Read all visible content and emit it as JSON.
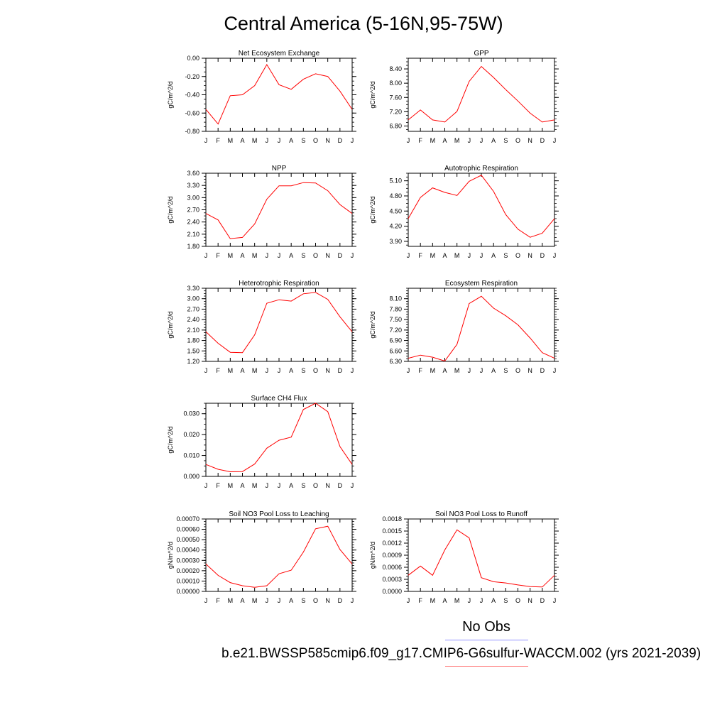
{
  "title": "Central America (5-16N,95-75W)",
  "legend": {
    "obs_label": "No Obs",
    "case_label": "b.e21.BWSSP585cmip6.f09_g17.CMIP6-G6sulfur-WACCM.002 (yrs 2021-2039)",
    "obs_color": "#9090ff",
    "case_color": "#ff0000"
  },
  "chart_data": [
    {
      "type": "line",
      "title": "Net Ecosystem Exchange",
      "ylabel": "gC/m^2/d",
      "x": [
        "J",
        "F",
        "M",
        "A",
        "M",
        "J",
        "J",
        "A",
        "S",
        "O",
        "N",
        "D",
        "J"
      ],
      "ylim": [
        -0.8,
        0.0
      ],
      "yticks": [
        "0.00",
        "-0.20",
        "-0.40",
        "-0.60",
        "-0.80"
      ],
      "ytick_values": [
        0.0,
        -0.2,
        -0.4,
        -0.6,
        -0.8
      ],
      "series": [
        {
          "values": [
            -0.56,
            -0.72,
            -0.41,
            -0.4,
            -0.3,
            -0.07,
            -0.29,
            -0.34,
            -0.23,
            -0.17,
            -0.2,
            -0.36,
            -0.56
          ]
        }
      ]
    },
    {
      "type": "line",
      "title": "GPP",
      "ylabel": "gC/m^2/d",
      "x": [
        "J",
        "F",
        "M",
        "A",
        "M",
        "J",
        "J",
        "A",
        "S",
        "O",
        "N",
        "D",
        "J"
      ],
      "ylim": [
        6.65,
        8.7
      ],
      "yticks": [
        "8.40",
        "8.00",
        "7.60",
        "7.20",
        "6.80"
      ],
      "ytick_values": [
        8.4,
        8.0,
        7.6,
        7.2,
        6.8
      ],
      "series": [
        {
          "values": [
            6.97,
            7.25,
            6.97,
            6.91,
            7.21,
            8.05,
            8.47,
            8.16,
            7.82,
            7.5,
            7.16,
            6.91,
            6.97
          ]
        }
      ]
    },
    {
      "type": "line",
      "title": "NPP",
      "ylabel": "gC/m^2/d",
      "x": [
        "J",
        "F",
        "M",
        "A",
        "M",
        "J",
        "J",
        "A",
        "S",
        "O",
        "N",
        "D",
        "J"
      ],
      "ylim": [
        1.8,
        3.6
      ],
      "yticks": [
        "3.60",
        "3.30",
        "3.00",
        "2.70",
        "2.40",
        "2.10",
        "1.80"
      ],
      "ytick_values": [
        3.6,
        3.3,
        3.0,
        2.7,
        2.4,
        2.1,
        1.8
      ],
      "series": [
        {
          "values": [
            2.61,
            2.45,
            1.99,
            2.02,
            2.35,
            2.96,
            3.29,
            3.29,
            3.37,
            3.36,
            3.17,
            2.83,
            2.61
          ]
        }
      ]
    },
    {
      "type": "line",
      "title": "Autotrophic Respiration",
      "ylabel": "gC/m^2/d",
      "x": [
        "J",
        "F",
        "M",
        "A",
        "M",
        "J",
        "J",
        "A",
        "S",
        "O",
        "N",
        "D",
        "J"
      ],
      "ylim": [
        3.8,
        5.25
      ],
      "yticks": [
        "5.10",
        "4.80",
        "4.50",
        "4.20",
        "3.90"
      ],
      "ytick_values": [
        5.1,
        4.8,
        4.5,
        4.2,
        3.9
      ],
      "series": [
        {
          "values": [
            4.35,
            4.77,
            4.96,
            4.87,
            4.81,
            5.09,
            5.21,
            4.89,
            4.43,
            4.14,
            3.98,
            4.06,
            4.35
          ]
        }
      ]
    },
    {
      "type": "line",
      "title": "Heterotrophic Respiration",
      "ylabel": "gC/m^2/d",
      "x": [
        "J",
        "F",
        "M",
        "A",
        "M",
        "J",
        "J",
        "A",
        "S",
        "O",
        "N",
        "D",
        "J"
      ],
      "ylim": [
        1.2,
        3.3
      ],
      "yticks": [
        "3.30",
        "3.00",
        "2.70",
        "2.40",
        "2.10",
        "1.80",
        "1.50",
        "1.20"
      ],
      "ytick_values": [
        3.3,
        3.0,
        2.7,
        2.4,
        2.1,
        1.8,
        1.5,
        1.2
      ],
      "series": [
        {
          "values": [
            2.05,
            1.72,
            1.46,
            1.45,
            1.96,
            2.87,
            2.97,
            2.93,
            3.14,
            3.18,
            2.98,
            2.48,
            2.05
          ]
        }
      ]
    },
    {
      "type": "line",
      "title": "Ecosystem Respiration",
      "ylabel": "gC/m^2/d",
      "x": [
        "J",
        "F",
        "M",
        "A",
        "M",
        "J",
        "J",
        "A",
        "S",
        "O",
        "N",
        "D",
        "J"
      ],
      "ylim": [
        6.3,
        8.4
      ],
      "yticks": [
        "8.10",
        "7.80",
        "7.50",
        "7.20",
        "6.90",
        "6.60",
        "6.30"
      ],
      "ytick_values": [
        8.1,
        7.8,
        7.5,
        7.2,
        6.9,
        6.6,
        6.3
      ],
      "series": [
        {
          "values": [
            6.39,
            6.48,
            6.42,
            6.31,
            6.79,
            7.96,
            8.17,
            7.83,
            7.61,
            7.35,
            6.97,
            6.55,
            6.39
          ]
        }
      ]
    },
    {
      "type": "line",
      "title": "Surface CH4 Flux",
      "ylabel": "gC/m^2/d",
      "x": [
        "J",
        "F",
        "M",
        "A",
        "M",
        "J",
        "J",
        "A",
        "S",
        "O",
        "N",
        "D",
        "J"
      ],
      "ylim": [
        0.0,
        0.035
      ],
      "yticks": [
        "0.030",
        "0.020",
        "0.010",
        "0.000"
      ],
      "ytick_values": [
        0.03,
        0.02,
        0.01,
        0.0
      ],
      "series": [
        {
          "values": [
            0.0057,
            0.0034,
            0.0022,
            0.0023,
            0.0059,
            0.0135,
            0.0173,
            0.0188,
            0.032,
            0.035,
            0.031,
            0.0143,
            0.0057
          ]
        }
      ]
    },
    {
      "type": "line",
      "title": "Soil NO3 Pool Loss to Leaching",
      "ylabel": "gN/m^2/d",
      "x": [
        "J",
        "F",
        "M",
        "A",
        "M",
        "J",
        "J",
        "A",
        "S",
        "O",
        "N",
        "D",
        "J"
      ],
      "ylim": [
        0.0,
        0.0007
      ],
      "yticks": [
        "0.00070",
        "0.00060",
        "0.00050",
        "0.00040",
        "0.00030",
        "0.00020",
        "0.00010",
        "0.00000"
      ],
      "ytick_values": [
        0.0007,
        0.0006,
        0.0005,
        0.0004,
        0.0003,
        0.0002,
        0.0001,
        0.0
      ],
      "series": [
        {
          "values": [
            0.000265,
            0.000155,
            8.5e-05,
            5.5e-05,
            4e-05,
            5.5e-05,
            0.00017,
            0.000205,
            0.00038,
            0.000605,
            0.00063,
            0.000405,
            0.000265
          ]
        }
      ]
    },
    {
      "type": "line",
      "title": "Soil NO3 Pool Loss to Runoff",
      "ylabel": "gN/m^2/d",
      "x": [
        "J",
        "F",
        "M",
        "A",
        "M",
        "J",
        "J",
        "A",
        "S",
        "O",
        "N",
        "D",
        "J"
      ],
      "ylim": [
        0.0,
        0.0018
      ],
      "yticks": [
        "0.0018",
        "0.0015",
        "0.0012",
        "0.0009",
        "0.0006",
        "0.0003",
        "0.0000"
      ],
      "ytick_values": [
        0.0018,
        0.0015,
        0.0012,
        0.0009,
        0.0006,
        0.0003,
        0.0
      ],
      "series": [
        {
          "values": [
            0.0004,
            0.00063,
            0.0004,
            0.00103,
            0.00153,
            0.00133,
            0.00034,
            0.00024,
            0.00021,
            0.00016,
            0.00012,
            0.00011,
            0.0004
          ]
        }
      ]
    }
  ]
}
